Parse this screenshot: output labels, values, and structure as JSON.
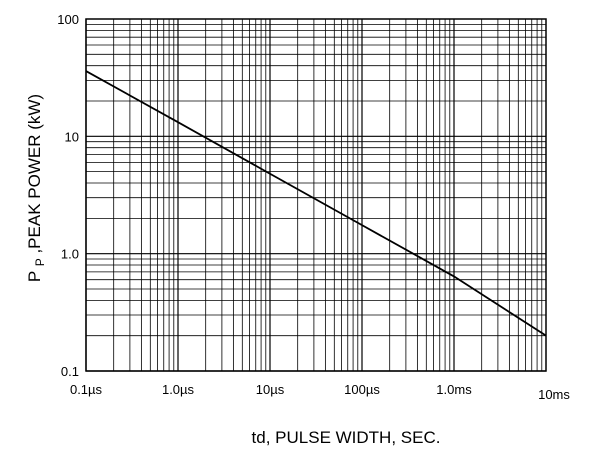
{
  "chart_data": {
    "type": "line",
    "xscale": "log",
    "yscale": "log",
    "xlim_seconds": [
      1e-07,
      0.01
    ],
    "ylim_kW": [
      0.1,
      100
    ],
    "grid": true,
    "xlabel": "td, PULSE WIDTH, SEC.",
    "ylabel_main": "P",
    "ylabel_sub": "P",
    "ylabel_rest": ",PEAK POWER (kW)",
    "xtick_values": [
      1e-07,
      1e-06,
      1e-05,
      0.0001,
      0.001,
      0.01
    ],
    "xtick_labels": [
      "0.1µs",
      "1.0µs",
      "10µs",
      "100µs",
      "1.0ms",
      "10ms"
    ],
    "ytick_values": [
      0.1,
      1,
      10,
      100
    ],
    "ytick_labels": [
      "0.1",
      "1.0",
      "10",
      "100"
    ],
    "series": [
      {
        "x": [
          1e-07,
          1e-06,
          1e-05,
          0.0001,
          0.001,
          0.01
        ],
        "y": [
          36,
          13.2,
          4.8,
          1.75,
          0.64,
          0.2
        ]
      }
    ]
  }
}
